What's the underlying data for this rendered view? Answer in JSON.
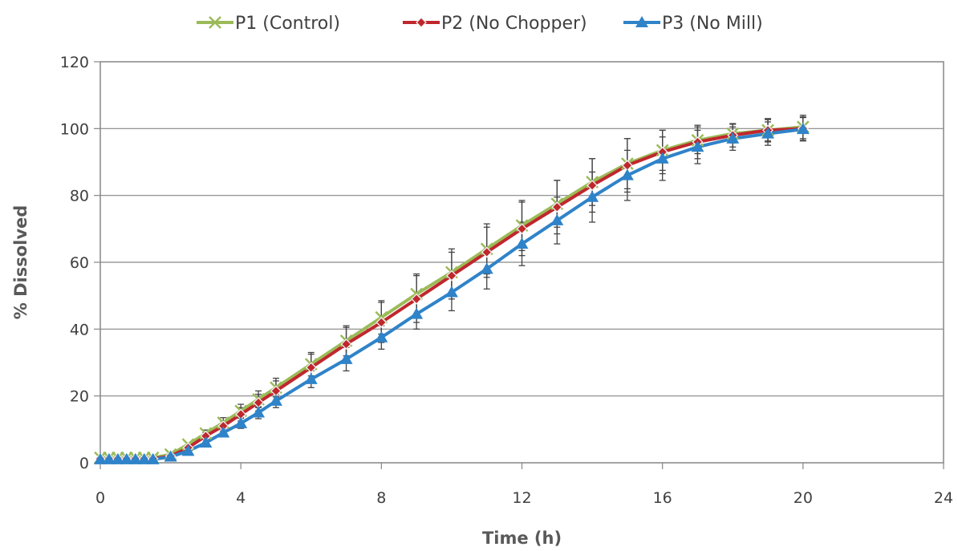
{
  "chart_data": {
    "type": "line",
    "xlabel": "Time (h)",
    "ylabel": "% Dissolved",
    "xlim": [
      0,
      24
    ],
    "ylim": [
      0,
      120
    ],
    "xticks": [
      0,
      4,
      8,
      12,
      16,
      20,
      24
    ],
    "yticks": [
      0,
      20,
      40,
      60,
      80,
      100,
      120
    ],
    "grid": "horizontal",
    "legend_position": "top",
    "series": [
      {
        "name": "P1 (Control)",
        "color": "#9BBB59",
        "marker": "x",
        "x": [
          0,
          0.25,
          0.5,
          0.75,
          1,
          1.25,
          1.5,
          2,
          2.5,
          3,
          3.5,
          4,
          4.5,
          5,
          6,
          7,
          8,
          9,
          10,
          11,
          12,
          13,
          14,
          15,
          16,
          17,
          18,
          19,
          20
        ],
        "y": [
          1.5,
          1.5,
          1.5,
          1.5,
          1.5,
          1.5,
          1.5,
          2.5,
          5.5,
          8.8,
          12,
          15.5,
          19,
          22.5,
          29.5,
          36.5,
          43.5,
          50.5,
          57,
          64,
          71,
          77.5,
          84,
          89.5,
          93.5,
          96.5,
          98.5,
          99.5,
          100.5
        ],
        "error": [
          0,
          0,
          0,
          0,
          0,
          0,
          0,
          0,
          0,
          1,
          1.5,
          2,
          2.5,
          2.8,
          3.5,
          4.5,
          5,
          6,
          7,
          7.5,
          7.5,
          7,
          7,
          7.5,
          6,
          4,
          2.8,
          3.2,
          3.5
        ]
      },
      {
        "name": "P2 (No Chopper)",
        "color": "#C0272D",
        "marker": "diamond",
        "x": [
          0,
          0.25,
          0.5,
          0.75,
          1,
          1.25,
          1.5,
          2,
          2.5,
          3,
          3.5,
          4,
          4.5,
          5,
          6,
          7,
          8,
          9,
          10,
          11,
          12,
          13,
          14,
          15,
          16,
          17,
          18,
          19,
          20
        ],
        "y": [
          1.2,
          1.2,
          1.2,
          1.2,
          1.2,
          1.2,
          1.2,
          2,
          4.5,
          8,
          11,
          14.5,
          18,
          21.5,
          28.5,
          35.5,
          42,
          49,
          56,
          63,
          70,
          76.5,
          83,
          89,
          93,
          96,
          98,
          99.5,
          100
        ],
        "error": [
          0,
          0,
          0,
          0,
          0,
          0,
          0,
          0,
          0,
          1,
          1.5,
          2,
          2.5,
          3,
          4,
          5,
          6,
          7,
          7,
          7.5,
          8,
          8,
          8,
          8,
          6.5,
          5,
          3.5,
          3.5,
          3.5
        ]
      },
      {
        "name": "P3 (No Mill)",
        "color": "#2F83C9",
        "marker": "triangle",
        "x": [
          0,
          0.25,
          0.5,
          0.75,
          1,
          1.25,
          1.5,
          2,
          2.5,
          3,
          3.5,
          4,
          4.5,
          5,
          6,
          7,
          8,
          9,
          10,
          11,
          12,
          13,
          14,
          15,
          16,
          17,
          18,
          19,
          20
        ],
        "y": [
          1,
          1,
          1,
          1,
          1,
          1,
          1,
          1.8,
          3.5,
          6,
          9,
          11.8,
          15,
          18.5,
          25,
          31,
          37.5,
          44.5,
          51,
          58,
          65.5,
          72.5,
          79.5,
          86,
          91,
          94.5,
          97,
          98.5,
          99.8
        ],
        "error": [
          0,
          0,
          0,
          0,
          0,
          0,
          0,
          0,
          0,
          1,
          1.2,
          1.5,
          1.8,
          2,
          2.5,
          3.5,
          3.5,
          4.5,
          5.5,
          6,
          6.5,
          7,
          7.5,
          7.5,
          6.5,
          5,
          3.5,
          3.5,
          3.5
        ]
      }
    ]
  }
}
